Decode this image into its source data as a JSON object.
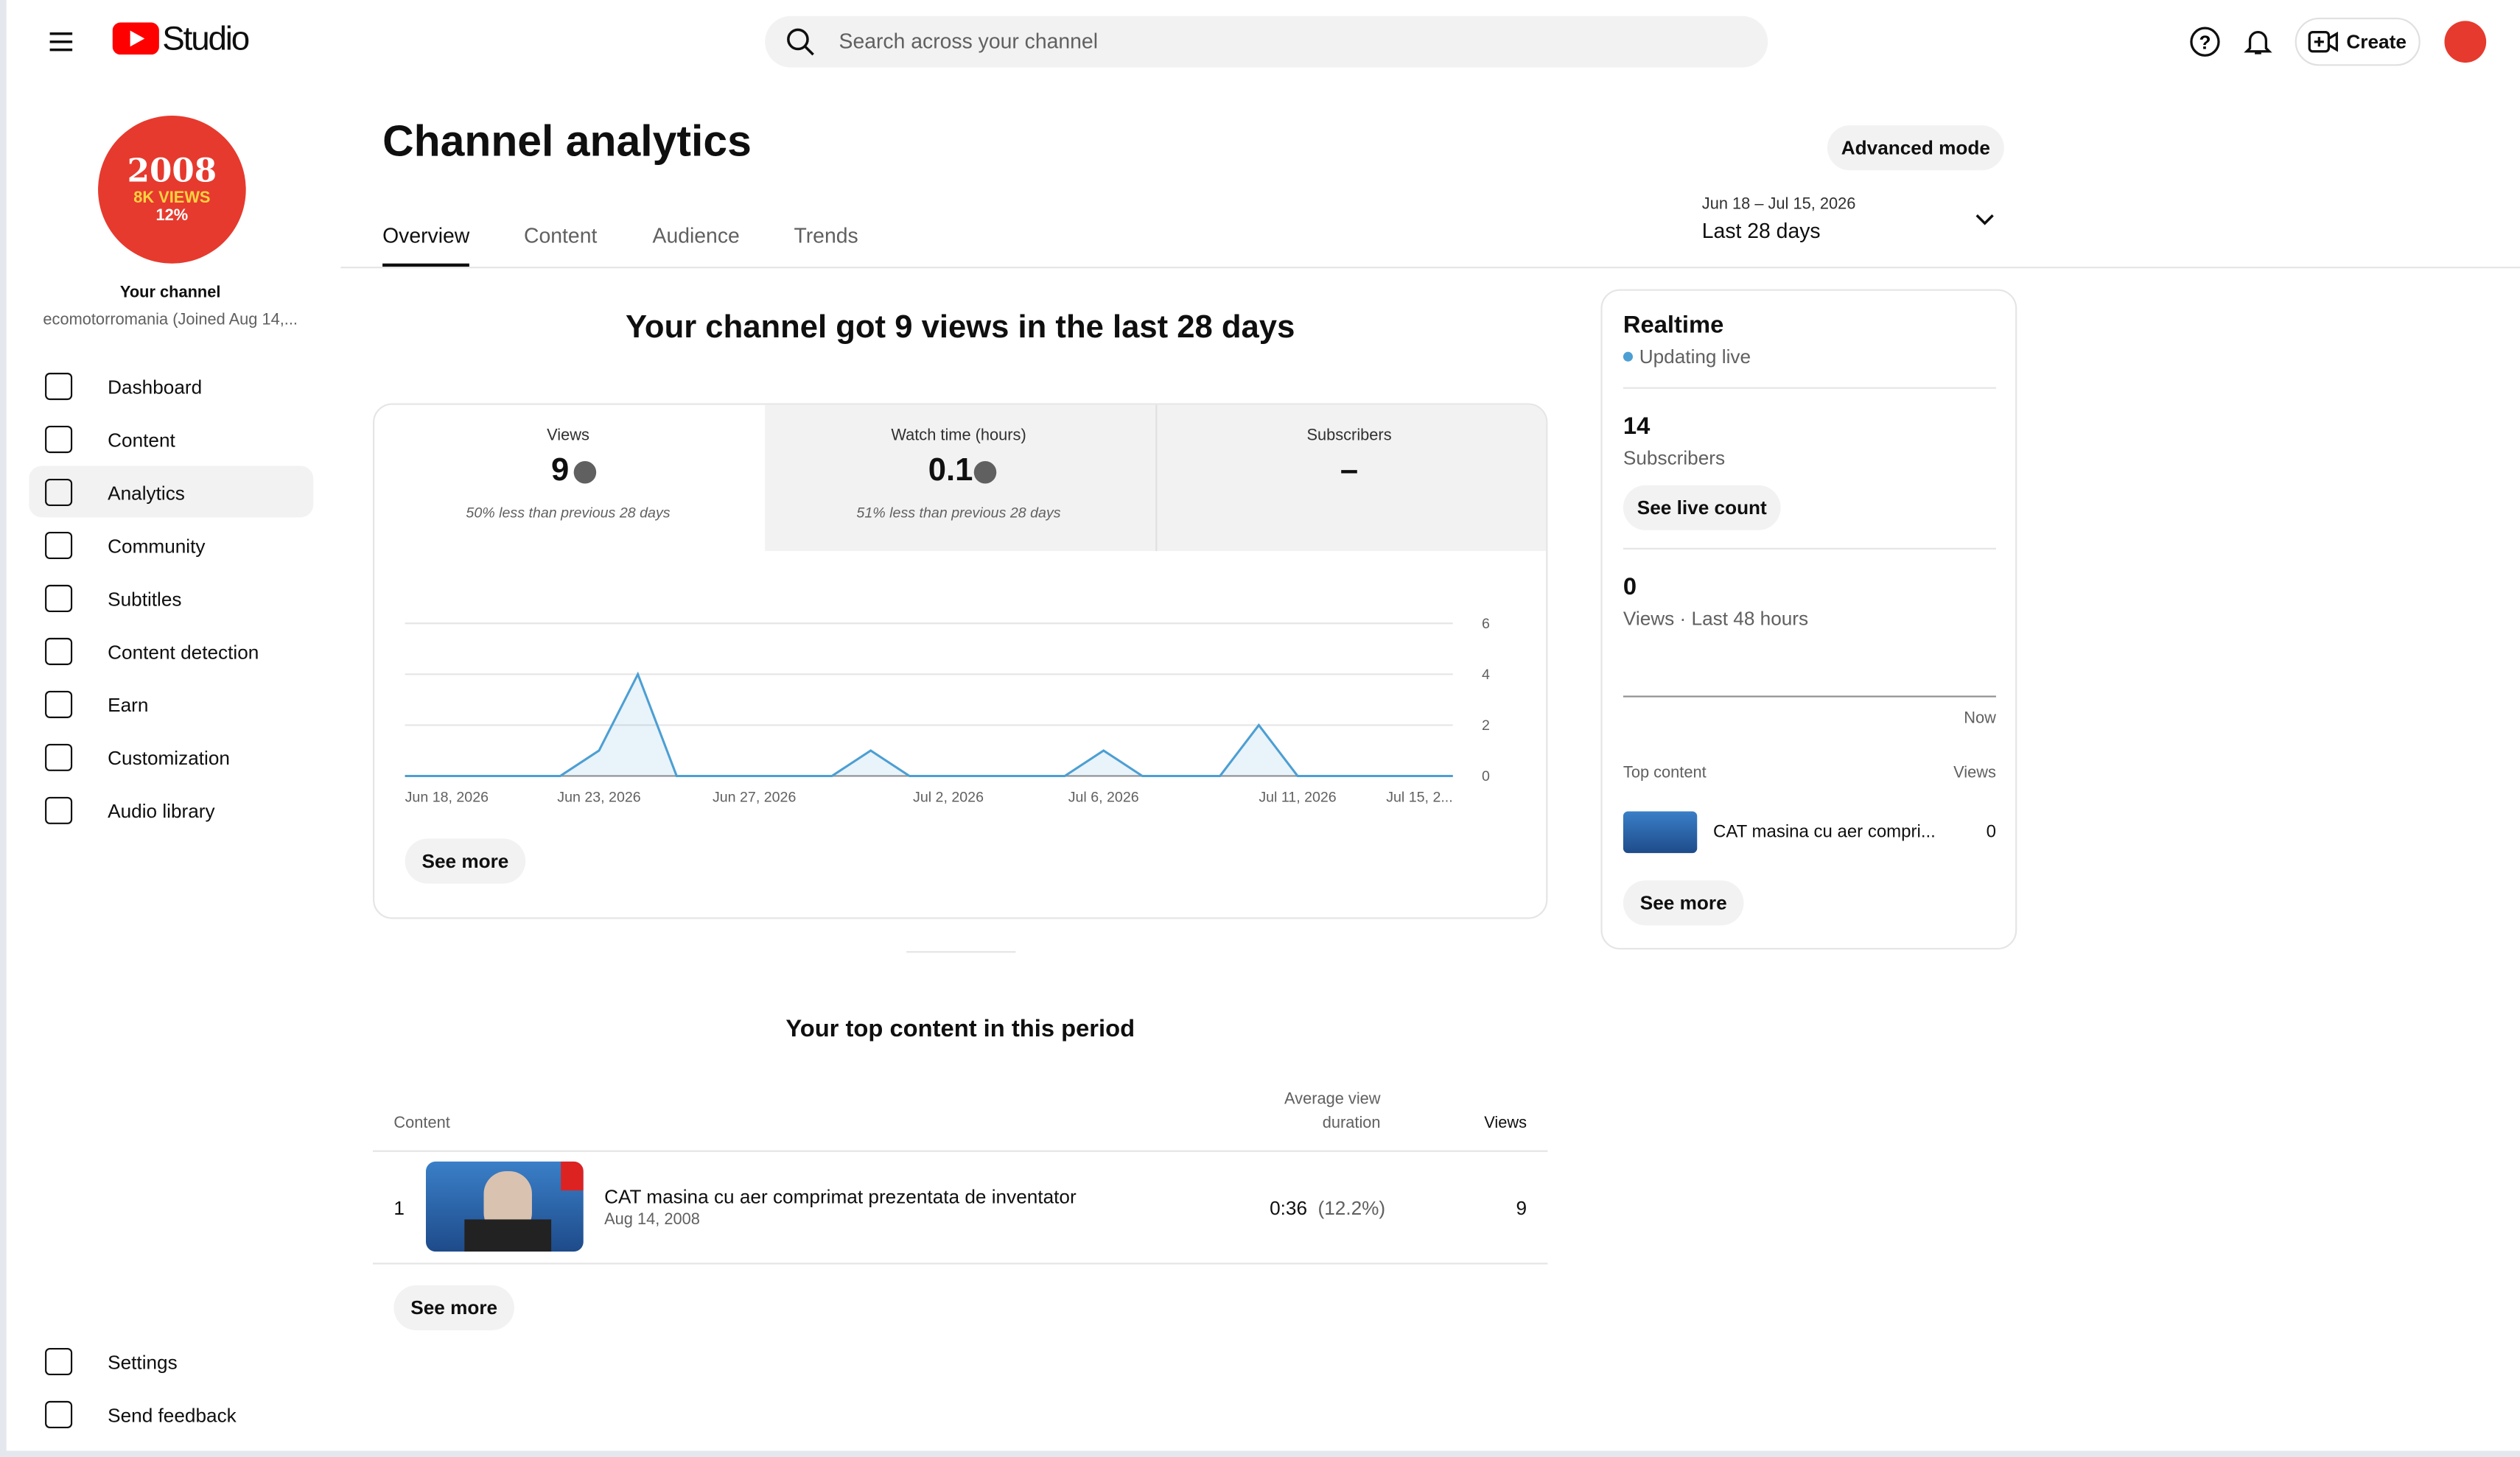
{
  "header": {
    "brand": "Studio",
    "search_placeholder": "Search across your channel",
    "create": "Create"
  },
  "sidebar": {
    "avatar_lines": [
      "2008",
      "8K VIEWS",
      "12%"
    ],
    "channel_label": "Your channel",
    "channel_name": "ecomotorromania (Joined Aug 14,...",
    "nav": [
      "Dashboard",
      "Content",
      "Analytics",
      "Community",
      "Subtitles",
      "Content detection",
      "Earn",
      "Customization",
      "Audio library"
    ],
    "footer_nav": [
      "Settings",
      "Send feedback"
    ]
  },
  "page": {
    "title": "Channel analytics",
    "advanced": "Advanced mode",
    "tabs": [
      "Overview",
      "Content",
      "Audience",
      "Trends"
    ],
    "date_range": "Jun 18 – Jul 15, 2026",
    "period": "Last 28 days",
    "headline": "Your channel got 9 views in the last 28 days"
  },
  "metrics": [
    {
      "label": "Views",
      "value": 9,
      "note": "50% less than previous 28 days"
    },
    {
      "label": "Watch time (hours)",
      "value": 0.1,
      "note": "51% less than previous 28 days"
    },
    {
      "label": "Subscribers",
      "value": "–"
    }
  ],
  "chart_data": {
    "type": "line",
    "categories": [
      "Jun 18, 2026",
      null,
      null,
      null,
      null,
      "Jun 23, 2026",
      null,
      null,
      null,
      "Jun 27, 2026",
      null,
      null,
      null,
      null,
      "Jul 2, 2026",
      null,
      null,
      null,
      "Jul 6, 2026",
      null,
      null,
      null,
      null,
      "Jul 11, 2026",
      null,
      null,
      null,
      "Jul 15, 2..."
    ],
    "values": [
      0,
      0,
      0,
      0,
      0,
      1,
      4,
      0,
      0,
      0,
      0,
      0,
      1,
      0,
      0,
      0,
      0,
      0,
      1,
      0,
      0,
      0,
      2,
      0,
      0,
      0,
      0,
      0
    ],
    "color": "#4c9fd3",
    "ylim": [
      0,
      6
    ],
    "yticks": [
      0,
      2,
      4,
      6
    ],
    "grid": true
  },
  "chart_see_more": "See more",
  "top_content": {
    "title": "Your top content in this period",
    "columns": [
      "Content",
      "Average view",
      "duration",
      "Views"
    ],
    "rows": [
      {
        "rank": "1",
        "title": "CAT masina cu aer comprimat prezentata de inventator",
        "date": "Aug 14, 2008",
        "avg": "0:36",
        "pct": "(12.2%)",
        "views": "9"
      }
    ],
    "see_more": "See more"
  },
  "realtime": {
    "title": "Realtime",
    "status": "Updating live",
    "subs": "14",
    "subs_label": "Subscribers",
    "live_button": "See live count",
    "views": "0",
    "views_label": "Views · Last 48 hours",
    "now": "Now",
    "top_label": "Top content",
    "views_col": "Views",
    "item": "CAT masina cu aer compri...",
    "item_views": "0",
    "see_more": "See more"
  }
}
